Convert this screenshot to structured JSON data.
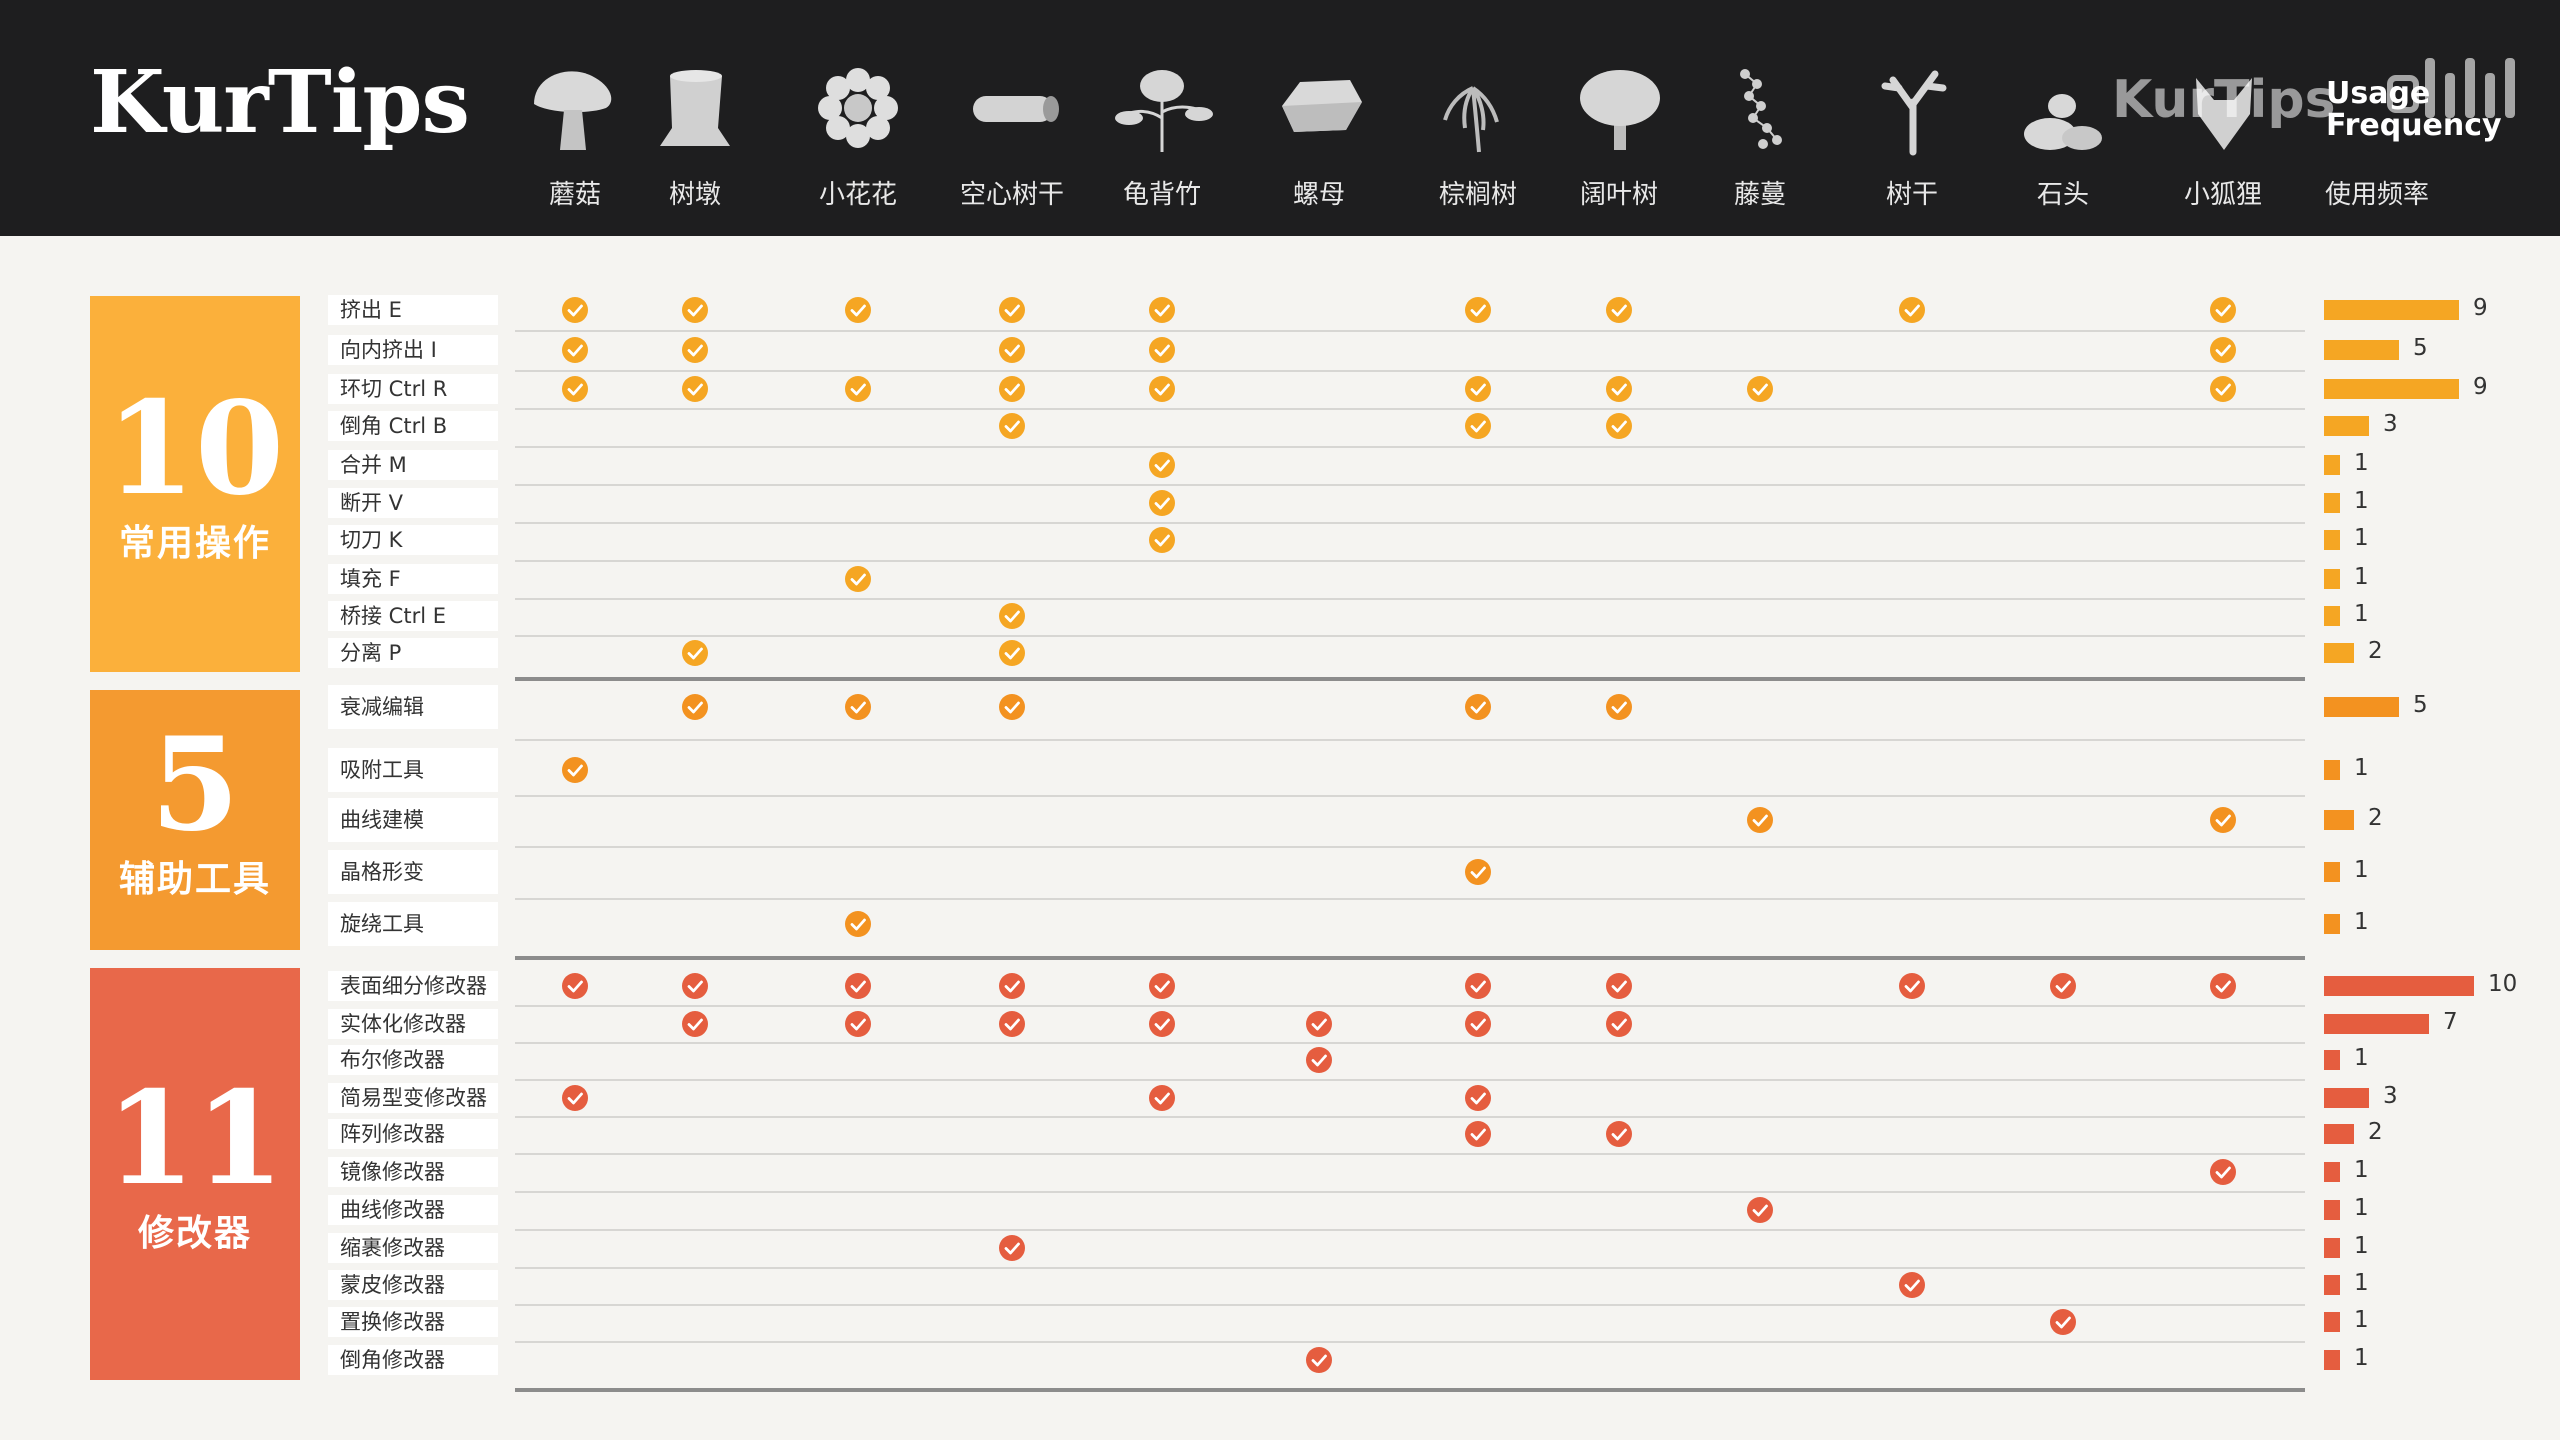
{
  "header": {
    "logo": "KurTips",
    "watermark": "KurTips",
    "freq_label_en": "Usage Frequency",
    "freq_label_zh": "使用频率"
  },
  "columns": [
    {
      "label": "蘑菇",
      "icon": "mushroom-icon"
    },
    {
      "label": "树墩",
      "icon": "tree-stump-icon"
    },
    {
      "label": "小花花",
      "icon": "flower-icon"
    },
    {
      "label": "空心树干",
      "icon": "hollow-log-icon"
    },
    {
      "label": "龟背竹",
      "icon": "monstera-icon"
    },
    {
      "label": "螺母",
      "icon": "nut-icon"
    },
    {
      "label": "棕榈树",
      "icon": "palm-tree-icon"
    },
    {
      "label": "阔叶树",
      "icon": "broadleaf-tree-icon"
    },
    {
      "label": "藤蔓",
      "icon": "vine-icon"
    },
    {
      "label": "树干",
      "icon": "tree-trunk-icon"
    },
    {
      "label": "石头",
      "icon": "stones-icon"
    },
    {
      "label": "小狐狸",
      "icon": "fox-icon"
    }
  ],
  "groups": [
    {
      "count": "10",
      "name": "常用操作",
      "color": "#fbb03b",
      "check_color": "#f5a623",
      "rows": [
        {
          "label": "挤出 E",
          "checks": [
            0,
            1,
            2,
            3,
            4,
            6,
            7,
            9,
            11
          ],
          "frequency": 9
        },
        {
          "label": "向内挤出 I",
          "checks": [
            0,
            1,
            3,
            4,
            11
          ],
          "frequency": 5
        },
        {
          "label": "环切 Ctrl R",
          "checks": [
            0,
            1,
            2,
            3,
            4,
            6,
            7,
            8,
            11
          ],
          "frequency": 9
        },
        {
          "label": "倒角 Ctrl B",
          "checks": [
            3,
            6,
            7
          ],
          "frequency": 3
        },
        {
          "label": "合并 M",
          "checks": [
            4
          ],
          "frequency": 1
        },
        {
          "label": "断开 V",
          "checks": [
            4
          ],
          "frequency": 1
        },
        {
          "label": "切刀 K",
          "checks": [
            4
          ],
          "frequency": 1
        },
        {
          "label": "填充 F",
          "checks": [
            2
          ],
          "frequency": 1
        },
        {
          "label": "桥接 Ctrl E",
          "checks": [
            3
          ],
          "frequency": 1
        },
        {
          "label": "分离 P",
          "checks": [
            1,
            3
          ],
          "frequency": 2
        }
      ]
    },
    {
      "count": "5",
      "name": "辅助工具",
      "color": "#f49a30",
      "check_color": "#f39220",
      "rows": [
        {
          "label": "衰减编辑",
          "checks": [
            1,
            2,
            3,
            6,
            7
          ],
          "frequency": 5
        },
        {
          "label": "吸附工具",
          "checks": [
            0
          ],
          "frequency": 1
        },
        {
          "label": "曲线建模",
          "checks": [
            8,
            11
          ],
          "frequency": 2
        },
        {
          "label": "晶格形变",
          "checks": [
            6
          ],
          "frequency": 1
        },
        {
          "label": "旋绕工具",
          "checks": [
            2
          ],
          "frequency": 1
        }
      ]
    },
    {
      "count": "11",
      "name": "修改器",
      "color": "#e8684a",
      "check_color": "#e55d3f",
      "rows": [
        {
          "label": "表面细分修改器",
          "checks": [
            0,
            1,
            2,
            3,
            4,
            6,
            7,
            9,
            10,
            11
          ],
          "frequency": 10
        },
        {
          "label": "实体化修改器",
          "checks": [
            1,
            2,
            3,
            4,
            5,
            6,
            7
          ],
          "frequency": 7
        },
        {
          "label": "布尔修改器",
          "checks": [
            5
          ],
          "frequency": 1
        },
        {
          "label": "简易型变修改器",
          "checks": [
            0,
            4,
            6
          ],
          "frequency": 3
        },
        {
          "label": "阵列修改器",
          "checks": [
            6,
            7
          ],
          "frequency": 2
        },
        {
          "label": "镜像修改器",
          "checks": [
            11
          ],
          "frequency": 1
        },
        {
          "label": "曲线修改器",
          "checks": [
            8
          ],
          "frequency": 1
        },
        {
          "label": "缩裹修改器",
          "checks": [
            3
          ],
          "frequency": 1
        },
        {
          "label": "蒙皮修改器",
          "checks": [
            9
          ],
          "frequency": 1
        },
        {
          "label": "置换修改器",
          "checks": [
            10
          ],
          "frequency": 1
        },
        {
          "label": "倒角修改器",
          "checks": [
            5
          ],
          "frequency": 1
        }
      ]
    }
  ],
  "frequency_max": 10
}
